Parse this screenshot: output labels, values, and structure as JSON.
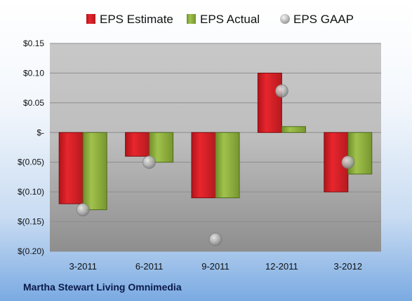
{
  "chart_data": {
    "type": "bar",
    "categories": [
      "3-2011",
      "6-2011",
      "9-2011",
      "12-2011",
      "3-2012"
    ],
    "series": [
      {
        "name": "EPS Estimate",
        "kind": "bar",
        "color": "#d61f26",
        "values": [
          -0.12,
          -0.04,
          -0.11,
          0.1,
          -0.1
        ]
      },
      {
        "name": "EPS Actual",
        "kind": "bar",
        "color": "#8fb23e",
        "values": [
          -0.13,
          -0.05,
          -0.11,
          0.01,
          -0.07
        ]
      },
      {
        "name": "EPS GAAP",
        "kind": "marker",
        "color": "#a8a8a8",
        "values": [
          -0.13,
          -0.05,
          -0.18,
          0.07,
          -0.05
        ]
      }
    ],
    "y_ticks": [
      {
        "value": 0.15,
        "label": "$0.15"
      },
      {
        "value": 0.1,
        "label": "$0.10"
      },
      {
        "value": 0.05,
        "label": "$0.05"
      },
      {
        "value": 0.0,
        "label": "$-"
      },
      {
        "value": -0.05,
        "label": "$(0.05)"
      },
      {
        "value": -0.1,
        "label": "$(0.10)"
      },
      {
        "value": -0.15,
        "label": "$(0.15)"
      },
      {
        "value": -0.2,
        "label": "$(0.20)"
      }
    ],
    "ylim": [
      -0.2,
      0.15
    ],
    "grid": true,
    "legend_position": "top",
    "footer": "Martha Stewart Living Omnimedia"
  }
}
